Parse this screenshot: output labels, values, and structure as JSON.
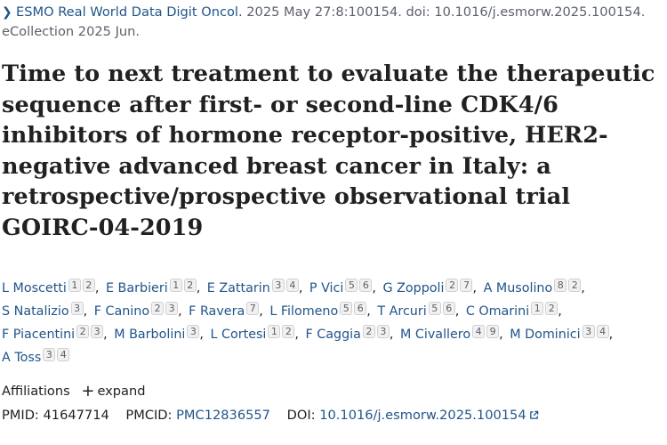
{
  "citation": {
    "journal": "ESMO Real World Data Digit Oncol.",
    "details": " 2025 May 27:8:100154. doi: 10.1016/j.esmorw.2025.100154. eCollection 2025 Jun."
  },
  "title": "Time to next treatment to evaluate the therapeutic sequence after first- or second-line CDK4/6 inhibitors of hormone receptor-positive, HER2-negative advanced breast cancer in Italy: a retrospective/prospective observational trial GOIRC-04-2019",
  "authors": [
    {
      "name": "L Moscetti",
      "affs": [
        "1",
        "2"
      ]
    },
    {
      "name": "E Barbieri",
      "affs": [
        "1",
        "2"
      ]
    },
    {
      "name": "E Zattarin",
      "affs": [
        "3",
        "4"
      ]
    },
    {
      "name": "P Vici",
      "affs": [
        "5",
        "6"
      ]
    },
    {
      "name": "G Zoppoli",
      "affs": [
        "2",
        "7"
      ]
    },
    {
      "name": "A Musolino",
      "affs": [
        "8",
        "2"
      ]
    },
    {
      "name": "S Natalizio",
      "affs": [
        "3"
      ]
    },
    {
      "name": "F Canino",
      "affs": [
        "2",
        "3"
      ]
    },
    {
      "name": "F Ravera",
      "affs": [
        "7"
      ]
    },
    {
      "name": "L Filomeno",
      "affs": [
        "5",
        "6"
      ]
    },
    {
      "name": "T Arcuri",
      "affs": [
        "5",
        "6"
      ]
    },
    {
      "name": "C Omarini",
      "affs": [
        "1",
        "2"
      ]
    },
    {
      "name": "F Piacentini",
      "affs": [
        "2",
        "3"
      ]
    },
    {
      "name": "M Barbolini",
      "affs": [
        "3"
      ]
    },
    {
      "name": "L Cortesi",
      "affs": [
        "1",
        "2"
      ]
    },
    {
      "name": "F Caggia",
      "affs": [
        "2",
        "3"
      ]
    },
    {
      "name": "M Civallero",
      "affs": [
        "4",
        "9"
      ]
    },
    {
      "name": "M Dominici",
      "affs": [
        "3",
        "4"
      ]
    },
    {
      "name": "A Toss",
      "affs": [
        "3",
        "4"
      ]
    }
  ],
  "affiliations": {
    "label": "Affiliations",
    "toggle": "expand"
  },
  "ids": {
    "pmid_label": "PMID:",
    "pmid": "41647714",
    "pmcid_label": "PMCID:",
    "pmcid": "PMC12836557",
    "doi_label": "DOI:",
    "doi": "10.1016/j.esmorw.2025.100154"
  },
  "icons": {
    "citation_chevron": "chevron-right-icon",
    "expand": "plus-icon",
    "external": "external-link-icon"
  },
  "colors": {
    "link": "#20558a",
    "text": "#212121",
    "muted": "#5b616b"
  }
}
